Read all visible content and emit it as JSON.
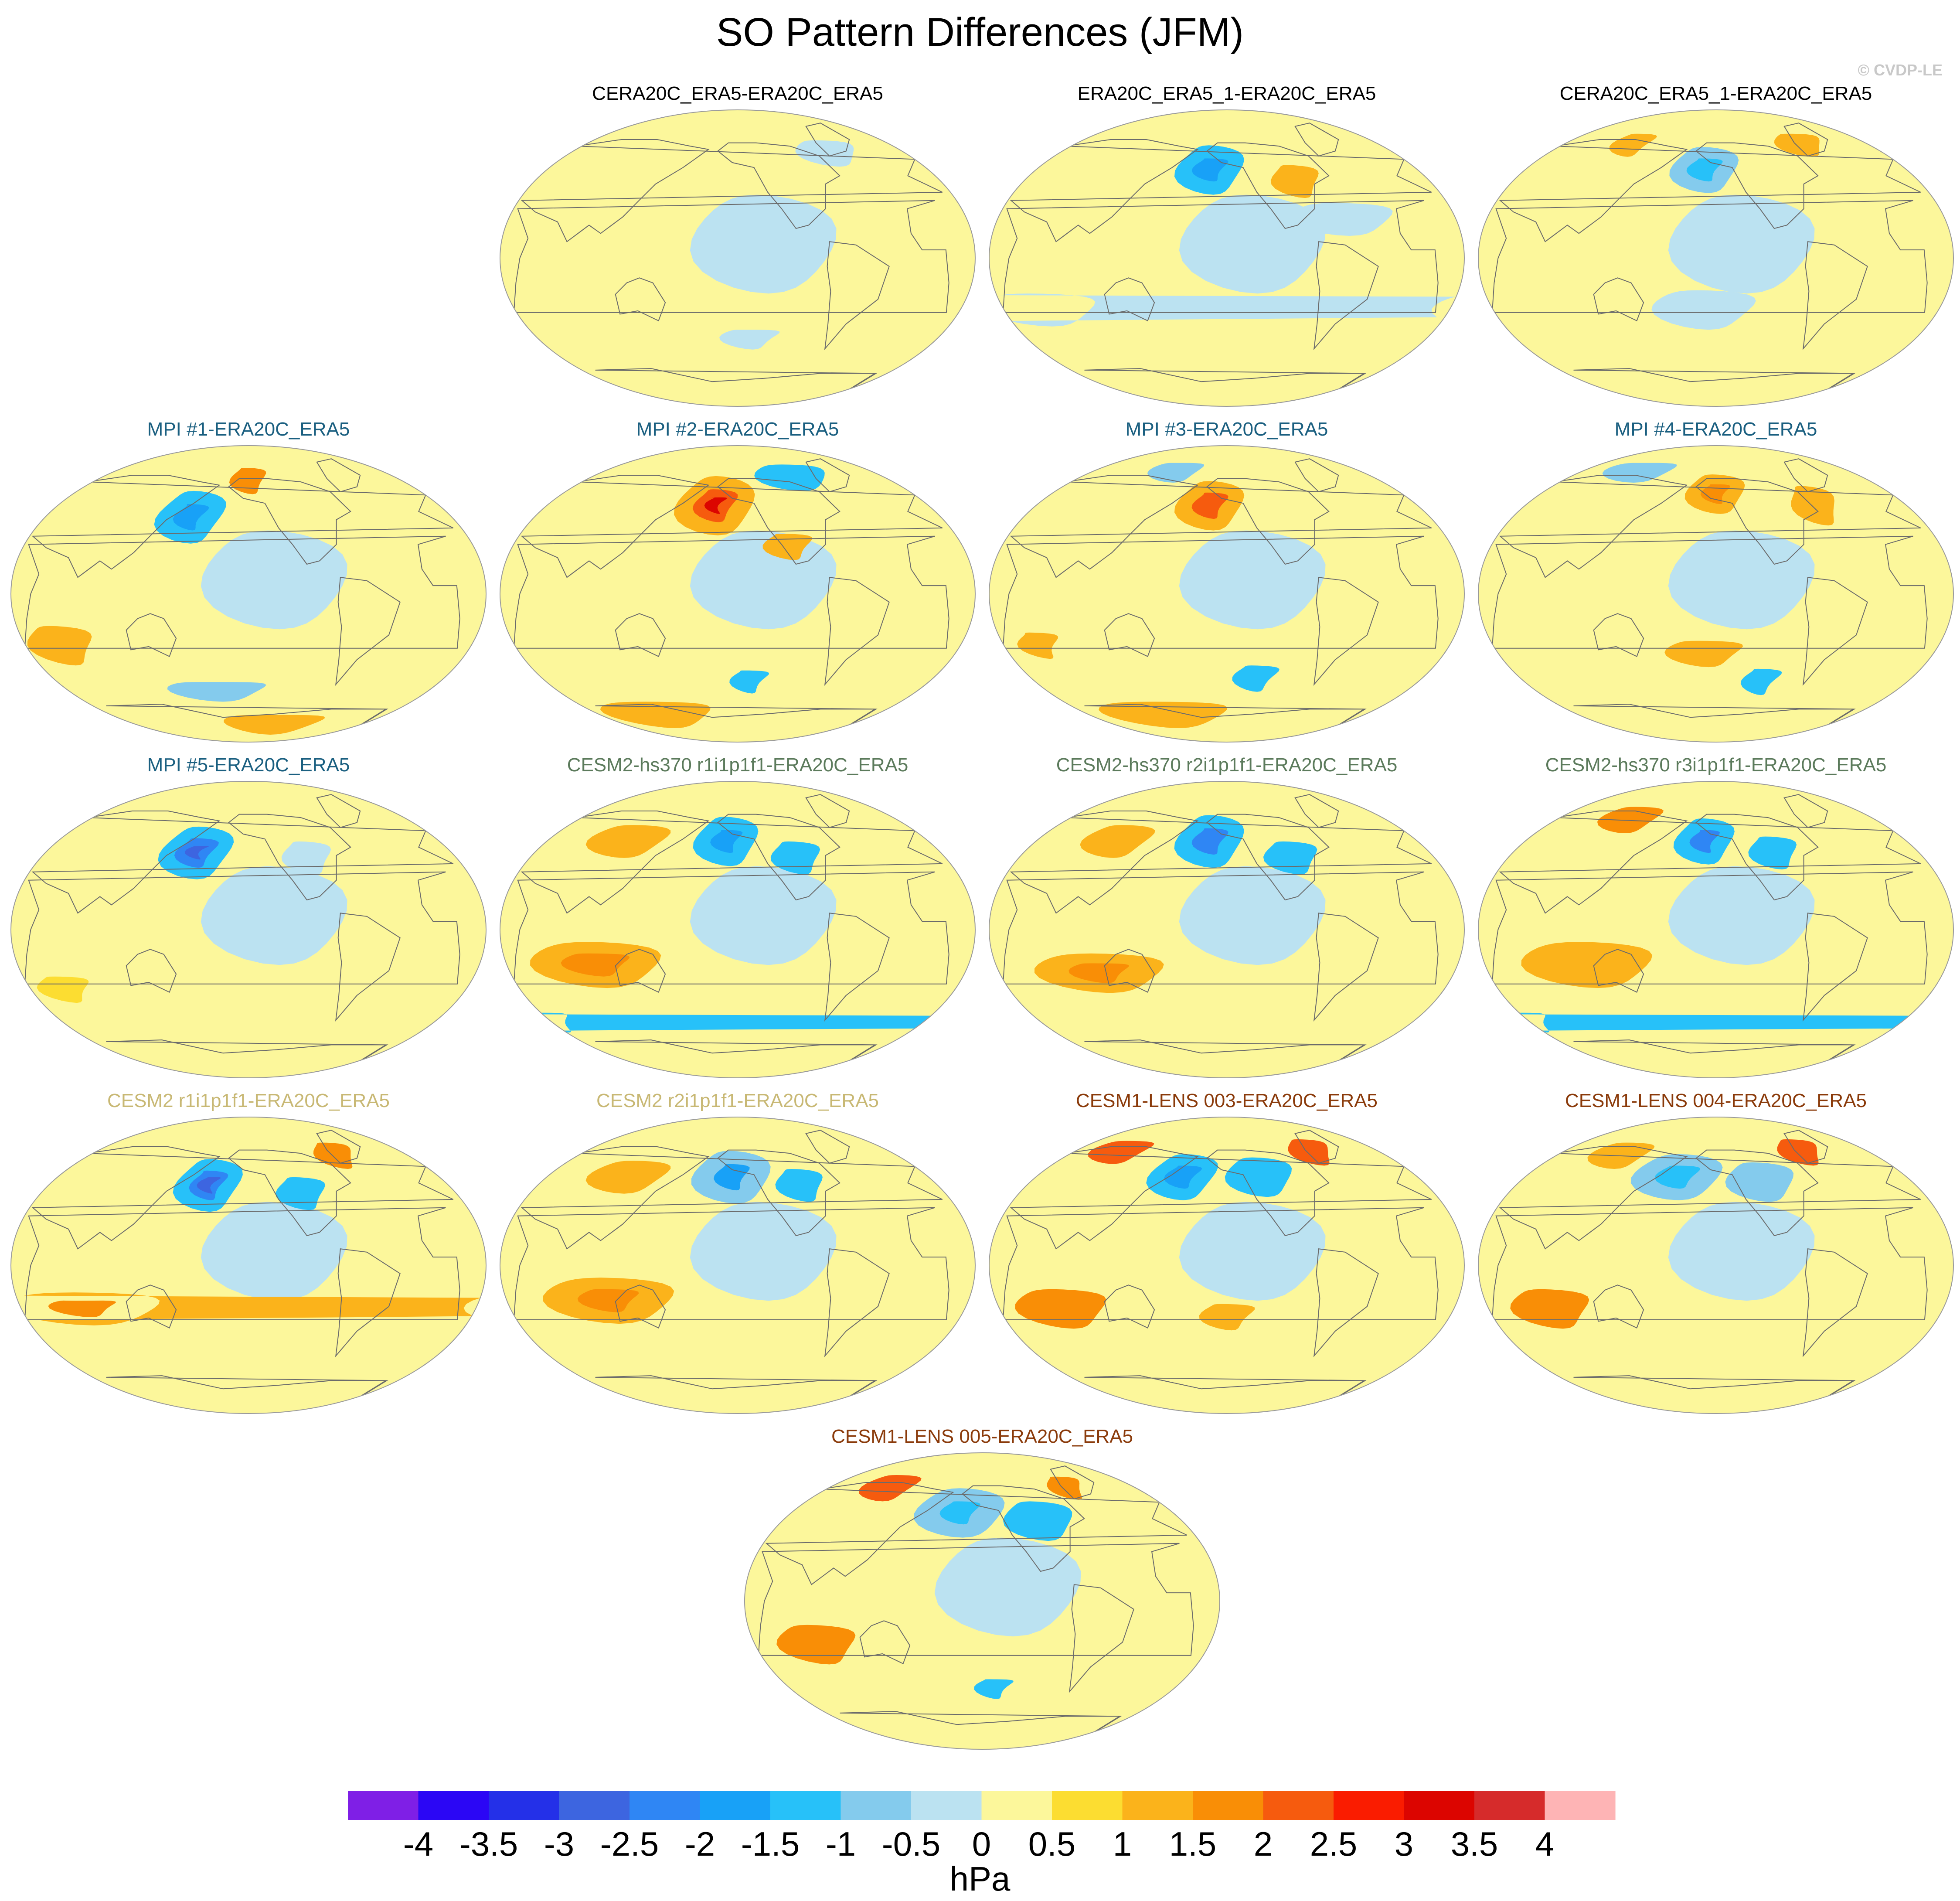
{
  "figure": {
    "title": "SO Pattern Differences (JFM)",
    "credit": "© CVDP-LE"
  },
  "chart_data": {
    "type": "contour-map-panels",
    "title": "SO Pattern Differences (JFM)",
    "projection": "Robinson (Pacific-centered)",
    "units": "hPa",
    "panels": [
      {
        "title": "CERA20C_ERA5-ERA20C_ERA5",
        "title_color": "#000000",
        "features": [
          {
            "lon": 220,
            "lat": -48,
            "rx": 24,
            "ry": 6,
            "level": -0.5
          },
          {
            "lon": 300,
            "lat": 65,
            "rx": 30,
            "ry": 8,
            "level": -0.5
          }
        ]
      },
      {
        "title": "ERA20C_ERA5_1-ERA20C_ERA5",
        "title_color": "#000000",
        "features": [
          {
            "lon": 195,
            "lat": 55,
            "rx": 30,
            "ry": 15,
            "level": -1.5
          },
          {
            "lon": 195,
            "lat": 55,
            "rx": 14,
            "ry": 7,
            "level": -2.0
          },
          {
            "lon": 270,
            "lat": 48,
            "rx": 20,
            "ry": 10,
            "level": 1.0
          },
          {
            "lon": 300,
            "lat": 25,
            "rx": 40,
            "ry": 10,
            "level": -0.5
          },
          {
            "lon": 60,
            "lat": -30,
            "rx": 45,
            "ry": 10,
            "level": -0.5
          }
        ]
      },
      {
        "title": "CERA20C_ERA5_1-ERA20C_ERA5",
        "title_color": "#000000",
        "features": [
          {
            "lon": 200,
            "lat": 55,
            "rx": 30,
            "ry": 14,
            "level": -1.0
          },
          {
            "lon": 200,
            "lat": 55,
            "rx": 14,
            "ry": 7,
            "level": -1.5
          },
          {
            "lon": 120,
            "lat": 70,
            "rx": 20,
            "ry": 7,
            "level": 1.0
          },
          {
            "lon": 300,
            "lat": 70,
            "rx": 25,
            "ry": 7,
            "level": 1.0
          },
          {
            "lon": 200,
            "lat": -30,
            "rx": 40,
            "ry": 12,
            "level": -0.5
          }
        ]
      },
      {
        "title": "MPI #1-ERA20C_ERA5",
        "title_color": "#1a5f80",
        "features": [
          {
            "lon": 160,
            "lat": 48,
            "rx": 28,
            "ry": 16,
            "level": -1.5
          },
          {
            "lon": 160,
            "lat": 48,
            "rx": 12,
            "ry": 8,
            "level": -2.0
          },
          {
            "lon": 210,
            "lat": 70,
            "rx": 18,
            "ry": 8,
            "level": 1.5
          },
          {
            "lon": 60,
            "lat": -30,
            "rx": 25,
            "ry": 12,
            "level": 1.0
          },
          {
            "lon": 180,
            "lat": -58,
            "rx": 45,
            "ry": 6,
            "level": -1.0
          },
          {
            "lon": 240,
            "lat": -78,
            "rx": 60,
            "ry": 6,
            "level": 1.0
          }
        ]
      },
      {
        "title": "MPI #2-ERA20C_ERA5",
        "title_color": "#1a5f80",
        "features": [
          {
            "lon": 190,
            "lat": 55,
            "rx": 35,
            "ry": 18,
            "level": 1.0
          },
          {
            "lon": 190,
            "lat": 55,
            "rx": 18,
            "ry": 10,
            "level": 2.0
          },
          {
            "lon": 190,
            "lat": 55,
            "rx": 7,
            "ry": 5,
            "level": 3.0
          },
          {
            "lon": 270,
            "lat": 72,
            "rx": 40,
            "ry": 8,
            "level": -1.5
          },
          {
            "lon": 250,
            "lat": 30,
            "rx": 18,
            "ry": 8,
            "level": 1.0
          },
          {
            "lon": 220,
            "lat": -52,
            "rx": 15,
            "ry": 7,
            "level": -1.5
          },
          {
            "lon": 120,
            "lat": -72,
            "rx": 60,
            "ry": 8,
            "level": 1.0
          }
        ]
      },
      {
        "title": "MPI #3-ERA20C_ERA5",
        "title_color": "#1a5f80",
        "features": [
          {
            "lon": 195,
            "lat": 55,
            "rx": 30,
            "ry": 15,
            "level": 1.0
          },
          {
            "lon": 195,
            "lat": 55,
            "rx": 14,
            "ry": 8,
            "level": 2.0
          },
          {
            "lon": 150,
            "lat": 75,
            "rx": 30,
            "ry": 6,
            "level": -1.0
          },
          {
            "lon": 60,
            "lat": -30,
            "rx": 15,
            "ry": 8,
            "level": 1.0
          },
          {
            "lon": 235,
            "lat": -50,
            "rx": 18,
            "ry": 8,
            "level": -1.5
          },
          {
            "lon": 140,
            "lat": -72,
            "rx": 70,
            "ry": 8,
            "level": 1.0
          }
        ]
      },
      {
        "title": "MPI #4-ERA20C_ERA5",
        "title_color": "#1a5f80",
        "features": [
          {
            "lon": 210,
            "lat": 62,
            "rx": 28,
            "ry": 12,
            "level": 1.0
          },
          {
            "lon": 210,
            "lat": 62,
            "rx": 12,
            "ry": 6,
            "level": 1.5
          },
          {
            "lon": 120,
            "lat": 75,
            "rx": 40,
            "ry": 6,
            "level": -1.0
          },
          {
            "lon": 300,
            "lat": 55,
            "rx": 20,
            "ry": 12,
            "level": 1.0
          },
          {
            "lon": 250,
            "lat": -52,
            "rx": 15,
            "ry": 8,
            "level": -1.5
          },
          {
            "lon": 200,
            "lat": -35,
            "rx": 30,
            "ry": 8,
            "level": 1.0
          }
        ]
      },
      {
        "title": "MPI #5-ERA20C_ERA5",
        "title_color": "#1a5f80",
        "features": [
          {
            "lon": 165,
            "lat": 48,
            "rx": 30,
            "ry": 16,
            "level": -1.5
          },
          {
            "lon": 165,
            "lat": 48,
            "rx": 16,
            "ry": 9,
            "level": -2.5
          },
          {
            "lon": 165,
            "lat": 48,
            "rx": 7,
            "ry": 4,
            "level": -3.0
          },
          {
            "lon": 260,
            "lat": 45,
            "rx": 20,
            "ry": 10,
            "level": -0.5
          },
          {
            "lon": 60,
            "lat": -35,
            "rx": 20,
            "ry": 8,
            "level": 0.5
          }
        ]
      },
      {
        "title": "CESM2-hs370 r1i1p1f1-ERA20C_ERA5",
        "title_color": "#5b7a5b",
        "features": [
          {
            "lon": 200,
            "lat": 55,
            "rx": 28,
            "ry": 15,
            "level": -1.5
          },
          {
            "lon": 200,
            "lat": 55,
            "rx": 12,
            "ry": 7,
            "level": -2.0
          },
          {
            "lon": 260,
            "lat": 45,
            "rx": 20,
            "ry": 10,
            "level": -1.5
          },
          {
            "lon": 100,
            "lat": -20,
            "rx": 50,
            "ry": 14,
            "level": 1.0
          },
          {
            "lon": 100,
            "lat": -20,
            "rx": 25,
            "ry": 7,
            "level": 1.5
          },
          {
            "lon": 110,
            "lat": 55,
            "rx": 35,
            "ry": 10,
            "level": 1.0
          },
          {
            "lon": 40,
            "lat": -55,
            "rx": 15,
            "ry": 6,
            "level": -1.5
          }
        ]
      },
      {
        "title": "CESM2-hs370 r2i1p1f1-ERA20C_ERA5",
        "title_color": "#5b7a5b",
        "features": [
          {
            "lon": 195,
            "lat": 55,
            "rx": 30,
            "ry": 16,
            "level": -1.5
          },
          {
            "lon": 195,
            "lat": 55,
            "rx": 14,
            "ry": 8,
            "level": -2.5
          },
          {
            "lon": 265,
            "lat": 45,
            "rx": 22,
            "ry": 10,
            "level": -1.5
          },
          {
            "lon": 110,
            "lat": -25,
            "rx": 50,
            "ry": 12,
            "level": 1.0
          },
          {
            "lon": 110,
            "lat": -25,
            "rx": 22,
            "ry": 6,
            "level": 1.5
          },
          {
            "lon": 110,
            "lat": 55,
            "rx": 30,
            "ry": 10,
            "level": 1.0
          }
        ]
      },
      {
        "title": "CESM2-hs370 r3i1p1f1-ERA20C_ERA5",
        "title_color": "#5b7a5b",
        "features": [
          {
            "lon": 200,
            "lat": 55,
            "rx": 26,
            "ry": 14,
            "level": -1.5
          },
          {
            "lon": 200,
            "lat": 55,
            "rx": 11,
            "ry": 7,
            "level": -2.5
          },
          {
            "lon": 260,
            "lat": 48,
            "rx": 20,
            "ry": 10,
            "level": -1.5
          },
          {
            "lon": 120,
            "lat": 68,
            "rx": 30,
            "ry": 8,
            "level": 1.5
          },
          {
            "lon": 110,
            "lat": -20,
            "rx": 50,
            "ry": 14,
            "level": 1.0
          },
          {
            "lon": 40,
            "lat": -55,
            "rx": 15,
            "ry": 6,
            "level": -1.5
          }
        ]
      },
      {
        "title": "CESM2 r1i1p1f1-ERA20C_ERA5",
        "title_color": "#c8b874",
        "features": [
          {
            "lon": 175,
            "lat": 50,
            "rx": 28,
            "ry": 16,
            "level": -1.5
          },
          {
            "lon": 175,
            "lat": 50,
            "rx": 14,
            "ry": 9,
            "level": -2.5
          },
          {
            "lon": 175,
            "lat": 50,
            "rx": 7,
            "ry": 5,
            "level": -3.0
          },
          {
            "lon": 255,
            "lat": 45,
            "rx": 20,
            "ry": 10,
            "level": -1.5
          },
          {
            "lon": 300,
            "lat": 68,
            "rx": 20,
            "ry": 8,
            "level": 1.5
          },
          {
            "lon": 80,
            "lat": -25,
            "rx": 60,
            "ry": 10,
            "level": 1.0
          },
          {
            "lon": 80,
            "lat": -25,
            "rx": 25,
            "ry": 5,
            "level": 1.5
          }
        ]
      },
      {
        "title": "CESM2 r2i1p1f1-ERA20C_ERA5",
        "title_color": "#c8b874",
        "features": [
          {
            "lon": 205,
            "lat": 55,
            "rx": 35,
            "ry": 16,
            "level": -1.0
          },
          {
            "lon": 205,
            "lat": 55,
            "rx": 14,
            "ry": 8,
            "level": -2.0
          },
          {
            "lon": 265,
            "lat": 50,
            "rx": 20,
            "ry": 10,
            "level": -1.5
          },
          {
            "lon": 110,
            "lat": -20,
            "rx": 50,
            "ry": 14,
            "level": 1.0
          },
          {
            "lon": 110,
            "lat": -20,
            "rx": 22,
            "ry": 7,
            "level": 1.5
          },
          {
            "lon": 110,
            "lat": 55,
            "rx": 35,
            "ry": 10,
            "level": 1.0
          }
        ]
      },
      {
        "title": "CESM1-LENS 003-ERA20C_ERA5",
        "title_color": "#8a3a0a",
        "features": [
          {
            "lon": 170,
            "lat": 55,
            "rx": 30,
            "ry": 14,
            "level": -1.5
          },
          {
            "lon": 170,
            "lat": 55,
            "rx": 14,
            "ry": 7,
            "level": -2.0
          },
          {
            "lon": 240,
            "lat": 55,
            "rx": 30,
            "ry": 12,
            "level": -1.5
          },
          {
            "lon": 95,
            "lat": 70,
            "rx": 30,
            "ry": 7,
            "level": 2.0
          },
          {
            "lon": 300,
            "lat": 70,
            "rx": 22,
            "ry": 8,
            "level": 2.0
          },
          {
            "lon": 80,
            "lat": -25,
            "rx": 35,
            "ry": 12,
            "level": 1.5
          },
          {
            "lon": 210,
            "lat": -30,
            "rx": 20,
            "ry": 8,
            "level": 1.0
          }
        ]
      },
      {
        "title": "CESM1-LENS 004-ERA20C_ERA5",
        "title_color": "#8a3a0a",
        "features": [
          {
            "lon": 175,
            "lat": 55,
            "rx": 40,
            "ry": 14,
            "level": -1.0
          },
          {
            "lon": 175,
            "lat": 55,
            "rx": 18,
            "ry": 7,
            "level": -1.5
          },
          {
            "lon": 250,
            "lat": 52,
            "rx": 30,
            "ry": 12,
            "level": -1.0
          },
          {
            "lon": 110,
            "lat": 68,
            "rx": 30,
            "ry": 8,
            "level": 1.0
          },
          {
            "lon": 300,
            "lat": 70,
            "rx": 22,
            "ry": 8,
            "level": 2.0
          },
          {
            "lon": 80,
            "lat": -25,
            "rx": 30,
            "ry": 12,
            "level": 1.5
          }
        ]
      },
      {
        "title": "CESM1-LENS 005-ERA20C_ERA5",
        "title_color": "#8a3a0a",
        "features": [
          {
            "lon": 190,
            "lat": 55,
            "rx": 40,
            "ry": 15,
            "level": -1.0
          },
          {
            "lon": 190,
            "lat": 55,
            "rx": 16,
            "ry": 7,
            "level": -1.5
          },
          {
            "lon": 260,
            "lat": 50,
            "rx": 30,
            "ry": 12,
            "level": -1.5
          },
          {
            "lon": 110,
            "lat": 70,
            "rx": 28,
            "ry": 8,
            "level": 2.0
          },
          {
            "lon": 300,
            "lat": 70,
            "rx": 18,
            "ry": 7,
            "level": 1.5
          },
          {
            "lon": 80,
            "lat": -25,
            "rx": 30,
            "ry": 12,
            "level": 1.5
          },
          {
            "lon": 220,
            "lat": -52,
            "rx": 15,
            "ry": 6,
            "level": -1.5
          }
        ]
      }
    ],
    "colorbar": {
      "label": "hPa",
      "tick_labels": [
        "-4",
        "-3.5",
        "-3",
        "-2.5",
        "-2",
        "-1.5",
        "-1",
        "-0.5",
        "0",
        "0.5",
        "1",
        "1.5",
        "2",
        "2.5",
        "3",
        "3.5",
        "4"
      ],
      "levels": [
        -4,
        -3.5,
        -3,
        -2.5,
        -2,
        -1.5,
        -1,
        -0.5,
        0,
        0.5,
        1,
        1.5,
        2,
        2.5,
        3,
        3.5,
        4
      ],
      "colors": [
        "#7f1fe6",
        "#2b06f5",
        "#2430e8",
        "#3d65e0",
        "#2f86f4",
        "#18a1f7",
        "#27c1f9",
        "#84cbed",
        "#bbe2f1",
        "#fcf79b",
        "#fcdd31",
        "#fbb31b",
        "#f98e06",
        "#f65b0e",
        "#fa1c00",
        "#dc0500",
        "#d62b2b",
        "#feb4b5"
      ]
    }
  }
}
